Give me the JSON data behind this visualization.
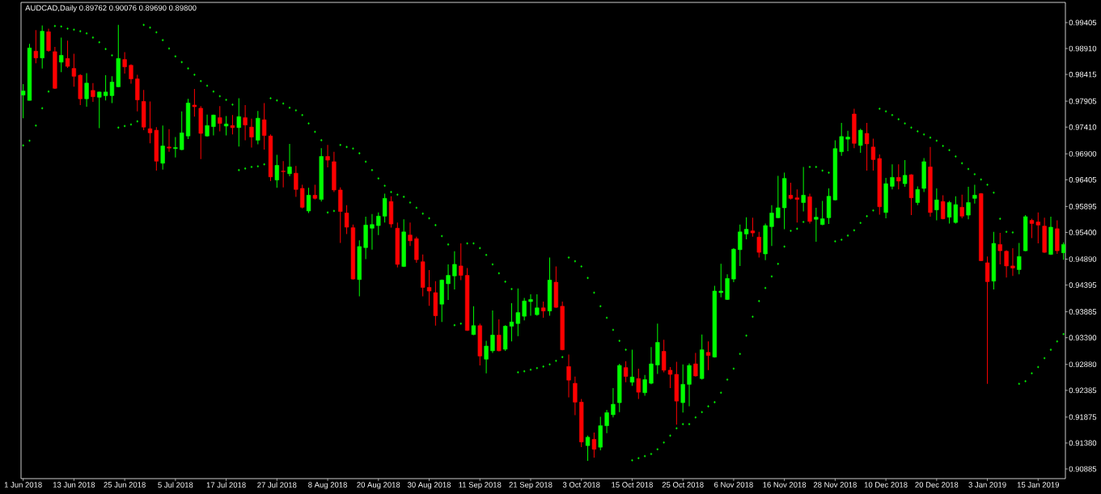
{
  "chart_data": {
    "type": "candlestick",
    "title": "AUDCAD,Daily 0.89762 0.90076 0.89690 0.89800",
    "categories": [
      "1 Jun 2018",
      null,
      null,
      null,
      null,
      null,
      null,
      null,
      "13 Jun 2018",
      null,
      null,
      null,
      null,
      null,
      null,
      null,
      "25 Jun 2018",
      null,
      null,
      null,
      null,
      null,
      null,
      null,
      "5 Jul 2018",
      null,
      null,
      null,
      null,
      null,
      null,
      null,
      "17 Jul 2018",
      null,
      null,
      null,
      null,
      null,
      null,
      null,
      "27 Jul 2018",
      null,
      null,
      null,
      null,
      null,
      null,
      null,
      "8 Aug 2018",
      null,
      null,
      null,
      null,
      null,
      null,
      null,
      "20 Aug 2018",
      null,
      null,
      null,
      null,
      null,
      null,
      null,
      "30 Aug 2018",
      null,
      null,
      null,
      null,
      null,
      null,
      null,
      "11 Sep 2018",
      null,
      null,
      null,
      null,
      null,
      null,
      null,
      "21 Sep 2018",
      null,
      null,
      null,
      null,
      null,
      null,
      null,
      "3 Oct 2018",
      null,
      null,
      null,
      null,
      null,
      null,
      null,
      "15 Oct 2018",
      null,
      null,
      null,
      null,
      null,
      null,
      null,
      "25 Oct 2018",
      null,
      null,
      null,
      null,
      null,
      null,
      null,
      "6 Nov 2018",
      null,
      null,
      null,
      null,
      null,
      null,
      null,
      "16 Nov 2018",
      null,
      null,
      null,
      null,
      null,
      null,
      null,
      "28 Nov 2018",
      null,
      null,
      null,
      null,
      null,
      null,
      null,
      "10 Dec 2018",
      null,
      null,
      null,
      null,
      null,
      null,
      null,
      "20 Dec 2018",
      null,
      null,
      null,
      null,
      null,
      null,
      null,
      "3 Jan 2019",
      null,
      null,
      null,
      null,
      null,
      null,
      null,
      "15 Jan 2019",
      null,
      null,
      null,
      null
    ],
    "ohlc": [
      [
        0.9802,
        0.9823,
        0.9758,
        0.981
      ],
      [
        0.9792,
        0.99,
        0.9792,
        0.9892
      ],
      [
        0.9886,
        0.9926,
        0.9863,
        0.9873
      ],
      [
        0.9873,
        0.9935,
        0.9853,
        0.9924
      ],
      [
        0.9923,
        0.9929,
        0.9885,
        0.9887
      ],
      [
        0.9885,
        0.9894,
        0.9814,
        0.9815
      ],
      [
        0.9865,
        0.9912,
        0.9846,
        0.9878
      ],
      [
        0.9872,
        0.9906,
        0.9854,
        0.9857
      ],
      [
        0.9853,
        0.9881,
        0.9818,
        0.9838
      ],
      [
        0.984,
        0.9842,
        0.9783,
        0.9795
      ],
      [
        0.9795,
        0.9844,
        0.978,
        0.9825
      ],
      [
        0.9811,
        0.9825,
        0.9789,
        0.9799
      ],
      [
        0.9798,
        0.9809,
        0.9739,
        0.9808
      ],
      [
        0.9801,
        0.984,
        0.9792,
        0.9808
      ],
      [
        0.9801,
        0.9838,
        0.9787,
        0.9827
      ],
      [
        0.9818,
        0.9936,
        0.9817,
        0.9872
      ],
      [
        0.987,
        0.9884,
        0.9843,
        0.9856
      ],
      [
        0.9859,
        0.9861,
        0.9824,
        0.9833
      ],
      [
        0.9833,
        0.9841,
        0.9771,
        0.9793
      ],
      [
        0.979,
        0.9812,
        0.9735,
        0.9741
      ],
      [
        0.9738,
        0.979,
        0.971,
        0.973
      ],
      [
        0.9735,
        0.9741,
        0.9658,
        0.9676
      ],
      [
        0.9672,
        0.9744,
        0.966,
        0.9705
      ],
      [
        0.9703,
        0.9737,
        0.9694,
        0.9701
      ],
      [
        0.97,
        0.9722,
        0.9683,
        0.9702
      ],
      [
        0.9698,
        0.9771,
        0.9697,
        0.973
      ],
      [
        0.9724,
        0.9795,
        0.9718,
        0.9787
      ],
      [
        0.9783,
        0.9814,
        0.9761,
        0.978
      ],
      [
        0.9777,
        0.9781,
        0.968,
        0.9729
      ],
      [
        0.9724,
        0.9765,
        0.9723,
        0.9744
      ],
      [
        0.9742,
        0.9765,
        0.9725,
        0.9764
      ],
      [
        0.9759,
        0.9781,
        0.9733,
        0.9748
      ],
      [
        0.9743,
        0.9762,
        0.9725,
        0.9747
      ],
      [
        0.9744,
        0.9764,
        0.9727,
        0.974
      ],
      [
        0.974,
        0.9796,
        0.9704,
        0.9761
      ],
      [
        0.9759,
        0.9783,
        0.9716,
        0.9745
      ],
      [
        0.9741,
        0.9757,
        0.9702,
        0.9722
      ],
      [
        0.9716,
        0.9772,
        0.9708,
        0.9758
      ],
      [
        0.9755,
        0.9787,
        0.9698,
        0.9725
      ],
      [
        0.9724,
        0.9727,
        0.9638,
        0.9646
      ],
      [
        0.964,
        0.9688,
        0.9625,
        0.9668
      ],
      [
        0.9657,
        0.9676,
        0.9626,
        0.9656
      ],
      [
        0.9652,
        0.9709,
        0.9647,
        0.9665
      ],
      [
        0.9653,
        0.9667,
        0.9608,
        0.9622
      ],
      [
        0.9624,
        0.9631,
        0.9586,
        0.9588
      ],
      [
        0.9581,
        0.9625,
        0.9577,
        0.9611
      ],
      [
        0.9611,
        0.9631,
        0.9603,
        0.9605
      ],
      [
        0.9603,
        0.9701,
        0.9599,
        0.9685
      ],
      [
        0.9685,
        0.9707,
        0.9664,
        0.9678
      ],
      [
        0.9675,
        0.9694,
        0.9617,
        0.9621
      ],
      [
        0.9621,
        0.9626,
        0.952,
        0.958
      ],
      [
        0.9577,
        0.9592,
        0.9537,
        0.955
      ],
      [
        0.9549,
        0.9555,
        0.945,
        0.9451
      ],
      [
        0.945,
        0.9525,
        0.9418,
        0.9513
      ],
      [
        0.9511,
        0.957,
        0.9489,
        0.9554
      ],
      [
        0.9548,
        0.9575,
        0.9507,
        0.9555
      ],
      [
        0.9553,
        0.9578,
        0.9535,
        0.9571
      ],
      [
        0.9571,
        0.9614,
        0.9559,
        0.9605
      ],
      [
        0.9599,
        0.9609,
        0.9549,
        0.9556
      ],
      [
        0.9548,
        0.9559,
        0.9473,
        0.9479
      ],
      [
        0.9475,
        0.9565,
        0.9474,
        0.9541
      ],
      [
        0.9535,
        0.9559,
        0.9514,
        0.9524
      ],
      [
        0.9528,
        0.9532,
        0.9482,
        0.9488
      ],
      [
        0.9484,
        0.9498,
        0.9418,
        0.9435
      ],
      [
        0.9435,
        0.9468,
        0.94,
        0.9428
      ],
      [
        0.9425,
        0.9447,
        0.9362,
        0.9381
      ],
      [
        0.9403,
        0.945,
        0.9369,
        0.9449
      ],
      [
        0.9442,
        0.9479,
        0.9411,
        0.9458
      ],
      [
        0.9457,
        0.9504,
        0.9431,
        0.9479
      ],
      [
        0.9476,
        0.9519,
        0.9449,
        0.9458
      ],
      [
        0.9458,
        0.9472,
        0.9352,
        0.9353
      ],
      [
        0.9345,
        0.9399,
        0.9344,
        0.9362
      ],
      [
        0.9362,
        0.9366,
        0.9286,
        0.9304
      ],
      [
        0.9298,
        0.9333,
        0.9271,
        0.9323
      ],
      [
        0.9314,
        0.9391,
        0.931,
        0.9344
      ],
      [
        0.9344,
        0.9374,
        0.9313,
        0.9314
      ],
      [
        0.9317,
        0.9363,
        0.9314,
        0.9361
      ],
      [
        0.9361,
        0.9405,
        0.9332,
        0.9369
      ],
      [
        0.9366,
        0.9433,
        0.9342,
        0.9387
      ],
      [
        0.938,
        0.9415,
        0.9372,
        0.9409
      ],
      [
        0.9408,
        0.9422,
        0.9381,
        0.9412
      ],
      [
        0.9383,
        0.9422,
        0.9381,
        0.9396
      ],
      [
        0.9396,
        0.9408,
        0.9377,
        0.939
      ],
      [
        0.939,
        0.9492,
        0.9381,
        0.9449
      ],
      [
        0.9445,
        0.9475,
        0.9396,
        0.9397
      ],
      [
        0.9399,
        0.9408,
        0.9315,
        0.9316
      ],
      [
        0.9284,
        0.9307,
        0.9225,
        0.9258
      ],
      [
        0.9252,
        0.9265,
        0.9191,
        0.9216
      ],
      [
        0.9216,
        0.9222,
        0.913,
        0.914
      ],
      [
        0.9133,
        0.9152,
        0.9104,
        0.9149
      ],
      [
        0.9145,
        0.9158,
        0.911,
        0.9126
      ],
      [
        0.913,
        0.9188,
        0.9124,
        0.9171
      ],
      [
        0.9171,
        0.9201,
        0.9157,
        0.9196
      ],
      [
        0.9192,
        0.9243,
        0.9187,
        0.9212
      ],
      [
        0.9215,
        0.9289,
        0.9197,
        0.9286
      ],
      [
        0.9282,
        0.9294,
        0.9254,
        0.9265
      ],
      [
        0.9254,
        0.9316,
        0.9247,
        0.9264
      ],
      [
        0.9261,
        0.928,
        0.9222,
        0.9235
      ],
      [
        0.9234,
        0.9268,
        0.9228,
        0.9259
      ],
      [
        0.9252,
        0.9321,
        0.925,
        0.9289
      ],
      [
        0.9287,
        0.9366,
        0.927,
        0.933
      ],
      [
        0.9313,
        0.9335,
        0.9273,
        0.9277
      ],
      [
        0.9277,
        0.9283,
        0.9243,
        0.9269
      ],
      [
        0.9269,
        0.9293,
        0.9173,
        0.9218
      ],
      [
        0.9215,
        0.9288,
        0.9196,
        0.925
      ],
      [
        0.925,
        0.929,
        0.9208,
        0.9286
      ],
      [
        0.9289,
        0.931,
        0.9265,
        0.9266
      ],
      [
        0.9261,
        0.9345,
        0.9259,
        0.9316
      ],
      [
        0.9311,
        0.9332,
        0.9277,
        0.9305
      ],
      [
        0.9302,
        0.9438,
        0.9301,
        0.9428
      ],
      [
        0.9425,
        0.948,
        0.9416,
        0.9428
      ],
      [
        0.9412,
        0.946,
        0.9411,
        0.9452
      ],
      [
        0.9451,
        0.951,
        0.9445,
        0.9508
      ],
      [
        0.9507,
        0.9555,
        0.9476,
        0.9541
      ],
      [
        0.9537,
        0.9569,
        0.9527,
        0.9546
      ],
      [
        0.9543,
        0.9568,
        0.9532,
        0.9539
      ],
      [
        0.9531,
        0.9541,
        0.9492,
        0.9502
      ],
      [
        0.9499,
        0.9557,
        0.9487,
        0.9553
      ],
      [
        0.9551,
        0.9592,
        0.9514,
        0.9577
      ],
      [
        0.9568,
        0.9648,
        0.9567,
        0.9587
      ],
      [
        0.9587,
        0.9654,
        0.9546,
        0.9643
      ],
      [
        0.9611,
        0.9635,
        0.9603,
        0.9605
      ],
      [
        0.9606,
        0.9622,
        0.9559,
        0.9603
      ],
      [
        0.9597,
        0.9665,
        0.958,
        0.9611
      ],
      [
        0.9608,
        0.9614,
        0.9557,
        0.9561
      ],
      [
        0.9565,
        0.9587,
        0.9522,
        0.9569
      ],
      [
        0.9555,
        0.96,
        0.9554,
        0.9566
      ],
      [
        0.9568,
        0.9624,
        0.9556,
        0.9609
      ],
      [
        0.9602,
        0.9716,
        0.9601,
        0.97
      ],
      [
        0.9694,
        0.9749,
        0.9686,
        0.9723
      ],
      [
        0.9718,
        0.9734,
        0.9695,
        0.9722
      ],
      [
        0.9766,
        0.9776,
        0.9701,
        0.971
      ],
      [
        0.9706,
        0.9738,
        0.9692,
        0.9735
      ],
      [
        0.9729,
        0.9749,
        0.9658,
        0.9709
      ],
      [
        0.9703,
        0.9719,
        0.9658,
        0.9679
      ],
      [
        0.9681,
        0.9689,
        0.9574,
        0.9589
      ],
      [
        0.9578,
        0.9644,
        0.9567,
        0.9633
      ],
      [
        0.9628,
        0.967,
        0.9622,
        0.9645
      ],
      [
        0.9645,
        0.967,
        0.9622,
        0.9638
      ],
      [
        0.9633,
        0.9678,
        0.9627,
        0.9649
      ],
      [
        0.965,
        0.9651,
        0.9573,
        0.9606
      ],
      [
        0.9597,
        0.9628,
        0.9592,
        0.9622
      ],
      [
        0.9624,
        0.9682,
        0.9617,
        0.9675
      ],
      [
        0.9665,
        0.9703,
        0.957,
        0.9578
      ],
      [
        0.9583,
        0.9624,
        0.9563,
        0.9602
      ],
      [
        0.9599,
        0.9611,
        0.9565,
        0.9566
      ],
      [
        0.9569,
        0.96,
        0.9557,
        0.9597
      ],
      [
        0.9559,
        0.9609,
        0.9557,
        0.9593
      ],
      [
        0.9588,
        0.9612,
        0.9567,
        0.9571
      ],
      [
        0.9573,
        0.9627,
        0.9565,
        0.9597
      ],
      [
        0.9605,
        0.9631,
        0.9595,
        0.9611
      ],
      [
        0.9614,
        0.9615,
        0.9485,
        0.9486
      ],
      [
        0.9482,
        0.9494,
        0.9251,
        0.9446
      ],
      [
        0.9447,
        0.9541,
        0.9431,
        0.9519
      ],
      [
        0.9517,
        0.9539,
        0.9479,
        0.9505
      ],
      [
        0.9504,
        0.9506,
        0.9454,
        0.9476
      ],
      [
        0.9476,
        0.951,
        0.9457,
        0.9472
      ],
      [
        0.9469,
        0.952,
        0.946,
        0.9494
      ],
      [
        0.9505,
        0.9573,
        0.9504,
        0.957
      ],
      [
        0.9563,
        0.9566,
        0.9529,
        0.9557
      ],
      [
        0.956,
        0.9578,
        0.9519,
        0.9554
      ],
      [
        0.9552,
        0.9568,
        0.9501,
        0.9502
      ],
      [
        0.9498,
        0.957,
        0.9497,
        0.955
      ],
      [
        0.9547,
        0.9563,
        0.9499,
        0.9505
      ],
      [
        0.9501,
        0.9521,
        0.9488,
        0.9517
      ]
    ],
    "colors": [
      "#00ff00",
      "#00ff00",
      "#ff0000",
      "#00ff00",
      "#ff0000",
      "#ff0000",
      "#00ff00",
      "#ff0000",
      "#ff0000",
      "#ff0000",
      "#00ff00",
      "#ff0000",
      "#00ff00",
      "#00ff00",
      "#00ff00",
      "#00ff00",
      "#ff0000",
      "#ff0000",
      "#ff0000",
      "#ff0000",
      "#ff0000",
      "#ff0000",
      "#00ff00",
      "#ff0000",
      "#00ff00",
      "#00ff00",
      "#00ff00",
      "#ff0000",
      "#ff0000",
      "#00ff00",
      "#00ff00",
      "#ff0000",
      "#00ff00",
      "#ff0000",
      "#00ff00",
      "#ff0000",
      "#ff0000",
      "#00ff00",
      "#ff0000",
      "#ff0000",
      "#00ff00",
      "#ff0000",
      "#00ff00",
      "#ff0000",
      "#ff0000",
      "#00ff00",
      "#ff0000",
      "#00ff00",
      "#ff0000",
      "#ff0000",
      "#ff0000",
      "#ff0000",
      "#ff0000",
      "#00ff00",
      "#00ff00",
      "#00ff00",
      "#00ff00",
      "#00ff00",
      "#ff0000",
      "#ff0000",
      "#00ff00",
      "#ff0000",
      "#ff0000",
      "#ff0000",
      "#ff0000",
      "#ff0000",
      "#00ff00",
      "#00ff00",
      "#00ff00",
      "#ff0000",
      "#ff0000",
      "#00ff00",
      "#ff0000",
      "#00ff00",
      "#00ff00",
      "#ff0000",
      "#00ff00",
      "#00ff00",
      "#00ff00",
      "#00ff00",
      "#00ff00",
      "#00ff00",
      "#ff0000",
      "#00ff00",
      "#ff0000",
      "#ff0000",
      "#ff0000",
      "#ff0000",
      "#ff0000",
      "#00ff00",
      "#ff0000",
      "#00ff00",
      "#00ff00",
      "#00ff00",
      "#00ff00",
      "#ff0000",
      "#00ff00",
      "#ff0000",
      "#00ff00",
      "#00ff00",
      "#00ff00",
      "#ff0000",
      "#ff0000",
      "#ff0000",
      "#00ff00",
      "#00ff00",
      "#ff0000",
      "#00ff00",
      "#ff0000",
      "#00ff00",
      "#00ff00",
      "#00ff00",
      "#00ff00",
      "#00ff00",
      "#00ff00",
      "#ff0000",
      "#ff0000",
      "#00ff00",
      "#00ff00",
      "#00ff00",
      "#00ff00",
      "#ff0000",
      "#ff0000",
      "#00ff00",
      "#ff0000",
      "#00ff00",
      "#00ff00",
      "#00ff00",
      "#00ff00",
      "#00ff00",
      "#00ff00",
      "#ff0000",
      "#00ff00",
      "#ff0000",
      "#ff0000",
      "#ff0000",
      "#00ff00",
      "#00ff00",
      "#ff0000",
      "#00ff00",
      "#ff0000",
      "#00ff00",
      "#00ff00",
      "#ff0000",
      "#00ff00",
      "#ff0000",
      "#00ff00",
      "#00ff00",
      "#ff0000",
      "#00ff00",
      "#00ff00",
      "#ff0000",
      "#ff0000",
      "#00ff00",
      "#ff0000",
      "#ff0000",
      "#ff0000",
      "#00ff00",
      "#00ff00",
      "#ff0000",
      "#ff0000",
      "#ff0000",
      "#00ff00",
      "#ff0000",
      "#00ff00"
    ],
    "series": [
      {
        "type": "scatter",
        "color": "#00ff00",
        "marker": "diamond",
        "values": [
          0.9706,
          0.9715,
          0.9744,
          0.9777,
          0.9809,
          0.9934,
          0.9933,
          0.9929,
          0.9927,
          0.9924,
          0.992,
          0.9912,
          0.9903,
          0.989,
          0.9878,
          0.974,
          0.9743,
          0.9746,
          0.9752,
          0.9936,
          0.9931,
          0.9922,
          0.9907,
          0.9891,
          0.9876,
          0.9865,
          0.9853,
          0.9841,
          0.9829,
          0.982,
          0.9809,
          0.98,
          0.9793,
          0.9784,
          0.9659,
          0.9662,
          0.9665,
          0.9666,
          0.967,
          0.9796,
          0.9792,
          0.9786,
          0.9778,
          0.9773,
          0.9764,
          0.9748,
          0.9732,
          0.9716,
          0.9578,
          0.9581,
          0.9707,
          0.9703,
          0.97,
          0.9691,
          0.9675,
          0.9659,
          0.9643,
          0.9629,
          0.9617,
          0.9612,
          0.9608,
          0.9597,
          0.9587,
          0.9576,
          0.9567,
          0.9554,
          0.9533,
          0.9517,
          0.9363,
          0.9366,
          0.9519,
          0.9519,
          0.951,
          0.9497,
          0.9479,
          0.9462,
          0.9446,
          0.9432,
          0.9273,
          0.9275,
          0.9278,
          0.9281,
          0.9284,
          0.9288,
          0.9295,
          0.9302,
          0.9492,
          0.9485,
          0.9475,
          0.9453,
          0.9425,
          0.9399,
          0.9377,
          0.9354,
          0.9333,
          0.9316,
          0.9105,
          0.9109,
          0.9113,
          0.9117,
          0.9126,
          0.9139,
          0.9152,
          0.9166,
          0.9174,
          0.9174,
          0.9187,
          0.9197,
          0.9208,
          0.9216,
          0.9234,
          0.9259,
          0.928,
          0.9308,
          0.9343,
          0.9379,
          0.9409,
          0.9434,
          0.9456,
          0.948,
          0.9513,
          0.9543,
          0.9547,
          0.956,
          0.9665,
          0.9665,
          0.9658,
          0.9654,
          0.9523,
          0.9526,
          0.9534,
          0.9544,
          0.9558,
          0.9571,
          0.9582,
          0.9776,
          0.9771,
          0.9764,
          0.9756,
          0.9748,
          0.974,
          0.9733,
          0.9727,
          0.9721,
          0.9715,
          0.9705,
          0.9697,
          0.9685,
          0.9672,
          0.9661,
          0.9651,
          0.9641,
          0.9631,
          0.9616,
          0.9566,
          0.9541,
          0.954,
          0.9251,
          0.9256,
          0.9271,
          0.9283,
          0.93,
          0.9316,
          0.9332,
          0.9346
        ]
      }
    ],
    "ylim": [
      0.907,
      0.9979
    ],
    "yticks": [
      0.99405,
      {
        "value": 0.9891,
        "label": "0.98910"
      },
      0.98415,
      0.97905,
      {
        "value": 0.9741,
        "label": "0.97410"
      },
      {
        "value": 0.969,
        "label": "0.96900"
      },
      0.96405,
      0.95895,
      {
        "value": 0.954,
        "label": "0.95400"
      },
      {
        "value": 0.9489,
        "label": "0.94890"
      },
      0.94395,
      0.93885,
      {
        "value": 0.9339,
        "label": "0.93390"
      },
      {
        "value": 0.9288,
        "label": "0.92880"
      },
      0.92385,
      0.91875,
      {
        "value": 0.9138,
        "label": "0.91380"
      },
      0.90885
    ]
  }
}
